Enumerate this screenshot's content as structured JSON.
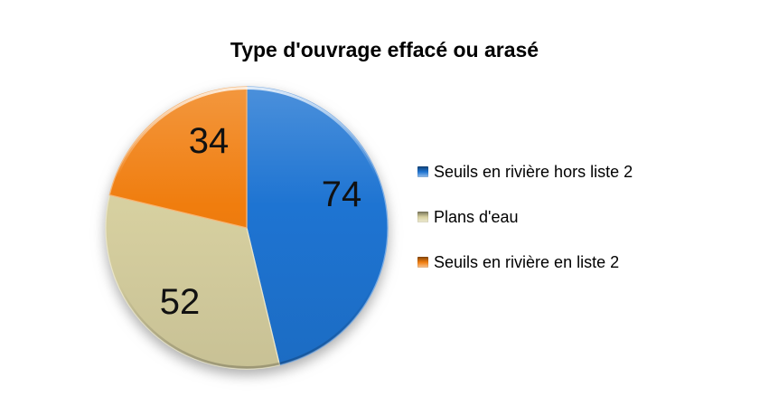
{
  "title": "Type d'ouvrage effacé ou arasé",
  "chart_data": {
    "type": "pie",
    "title": "Type d'ouvrage effacé ou arasé",
    "categories": [
      "Seuils en rivière hors liste 2",
      "Plans d'eau",
      "Seuils en rivière en liste 2"
    ],
    "values": [
      74,
      52,
      34
    ],
    "total": 160,
    "colors": [
      "#1e74d2",
      "#d7d0a0",
      "#f07d0e"
    ],
    "start_angle_deg": 0,
    "direction": "clockwise",
    "data_labels_shown": true,
    "legend_position": "right",
    "background": "#ffffff"
  },
  "legend": {
    "items": [
      {
        "label": "Seuils en rivière hors liste 2",
        "color": "#1e74d2",
        "marker_icon": "square-icon"
      },
      {
        "label": "Plans d'eau",
        "color": "#d7d0a0",
        "marker_icon": "square-icon"
      },
      {
        "label": "Seuils en rivière en liste 2",
        "color": "#f07d0e",
        "marker_icon": "square-icon"
      }
    ]
  }
}
